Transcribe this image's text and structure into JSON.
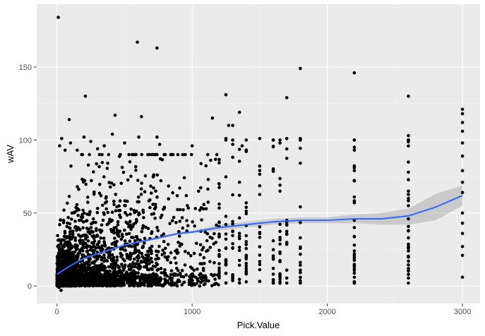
{
  "chart_data": {
    "type": "scatter",
    "title": "",
    "xlabel": "Pick.Value",
    "ylabel": "wAV",
    "xlim": [
      -150,
      3130
    ],
    "ylim": [
      -12,
      193
    ],
    "x_ticks": [
      0,
      1000,
      2000,
      3000
    ],
    "y_ticks": [
      0,
      50,
      100,
      150
    ],
    "x_tick_labels": [
      "0",
      "1000",
      "2000",
      "3000"
    ],
    "y_tick_labels": [
      "0",
      "50",
      "100",
      "150"
    ],
    "grid": true,
    "legend": "none",
    "colors": {
      "panel_background": "#ebebeb",
      "grid_major": "#ffffff",
      "grid_minor": "#f5f5f5",
      "points": "#000000",
      "smooth_line": "#3366ff",
      "confidence_band": "#999999"
    },
    "smooth": {
      "x": [
        0,
        100,
        200,
        300,
        400,
        500,
        600,
        700,
        800,
        900,
        1000,
        1200,
        1400,
        1600,
        1800,
        2000,
        2200,
        2400,
        2600,
        2800,
        3000
      ],
      "y": [
        8,
        14,
        19,
        22,
        25,
        28,
        30,
        32,
        34,
        36,
        37,
        40,
        42,
        44,
        45,
        45,
        46,
        46,
        48,
        54,
        62
      ],
      "lower": [
        6,
        13,
        18,
        21,
        24,
        27,
        29,
        31,
        33,
        35,
        36,
        38,
        40,
        42,
        43,
        43,
        43,
        42,
        42,
        45,
        55
      ],
      "upper": [
        10,
        15,
        20,
        23,
        26,
        29,
        31,
        33,
        35,
        37,
        38,
        42,
        44,
        46,
        47,
        47,
        49,
        50,
        53,
        63,
        69
      ]
    },
    "points": {
      "outliers": [
        [
          10,
          184
        ],
        [
          595,
          167
        ],
        [
          740,
          163
        ],
        [
          1800,
          149
        ],
        [
          2200,
          146
        ],
        [
          210,
          130
        ],
        [
          1250,
          131
        ],
        [
          1700,
          129
        ],
        [
          2600,
          130
        ],
        [
          430,
          117
        ],
        [
          90,
          114
        ],
        [
          625,
          116
        ],
        [
          1150,
          115
        ],
        [
          1350,
          119
        ],
        [
          3000,
          121
        ],
        [
          3000,
          118
        ],
        [
          3000,
          112
        ],
        [
          3000,
          106
        ],
        [
          3000,
          98
        ],
        [
          3000,
          89
        ],
        [
          3000,
          79
        ],
        [
          3000,
          71
        ],
        [
          3000,
          64
        ],
        [
          3000,
          50
        ],
        [
          3000,
          43
        ],
        [
          3000,
          36
        ],
        [
          3000,
          27
        ],
        [
          3000,
          21
        ],
        [
          3000,
          6
        ],
        [
          1500,
          101
        ],
        [
          1600,
          100
        ],
        [
          1700,
          101
        ],
        [
          1800,
          101
        ],
        [
          1370,
          96
        ],
        [
          1250,
          101
        ],
        [
          1300,
          110
        ],
        [
          1270,
          110
        ],
        [
          2200,
          95
        ],
        [
          2200,
          93
        ],
        [
          2200,
          81
        ],
        [
          2200,
          79
        ],
        [
          2200,
          72
        ],
        [
          2600,
          103
        ],
        [
          2600,
          100
        ],
        [
          2600,
          78
        ],
        [
          2600,
          65
        ],
        [
          2600,
          60
        ],
        [
          2600,
          55
        ],
        [
          2600,
          46
        ],
        [
          2600,
          38
        ],
        [
          2600,
          33
        ],
        [
          2600,
          27
        ],
        [
          2600,
          24
        ],
        [
          2600,
          17
        ],
        [
          2600,
          12
        ],
        [
          2600,
          8
        ],
        [
          2200,
          61
        ],
        [
          2200,
          57
        ],
        [
          2200,
          45
        ],
        [
          2200,
          40
        ],
        [
          2200,
          34
        ],
        [
          2200,
          28
        ],
        [
          2200,
          22
        ],
        [
          2200,
          18
        ],
        [
          2200,
          12
        ],
        [
          2200,
          6
        ],
        [
          2200,
          3
        ],
        [
          30,
          -3
        ],
        [
          15,
          -1
        ],
        [
          410,
          104
        ],
        [
          605,
          102
        ],
        [
          740,
          102
        ],
        [
          760,
          97
        ],
        [
          1000,
          96
        ],
        [
          20,
          96
        ],
        [
          35,
          101
        ],
        [
          60,
          93
        ],
        [
          100,
          98
        ],
        [
          150,
          93
        ],
        [
          200,
          102
        ],
        [
          250,
          99
        ],
        [
          300,
          94
        ],
        [
          350,
          96
        ],
        [
          500,
          98
        ]
      ],
      "column_x": [
        1200,
        1250,
        1300,
        1350,
        1400,
        1500,
        1600,
        1650,
        1700,
        1800,
        2200,
        2600
      ],
      "cloud_density": [
        [
          0,
          100,
          1100
        ],
        [
          100,
          200,
          420
        ],
        [
          200,
          300,
          300
        ],
        [
          300,
          400,
          240
        ],
        [
          400,
          500,
          190
        ],
        [
          500,
          600,
          160
        ],
        [
          600,
          700,
          130
        ],
        [
          700,
          800,
          110
        ],
        [
          800,
          900,
          60
        ],
        [
          900,
          1000,
          55
        ],
        [
          1000,
          1100,
          50
        ],
        [
          1100,
          1200,
          40
        ]
      ]
    }
  }
}
